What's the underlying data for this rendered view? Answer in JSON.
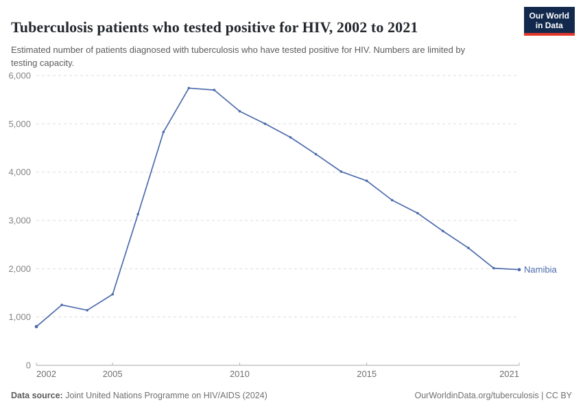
{
  "header": {
    "title": "Tuberculosis patients who tested positive for HIV, 2002 to 2021",
    "subtitle": "Estimated number of patients diagnosed with tuberculosis who have tested positive for HIV. Numbers are limited by testing capacity.",
    "logo": {
      "line1": "Our World",
      "line2": "in Data"
    }
  },
  "chart_data": {
    "type": "line",
    "title": "Tuberculosis patients who tested positive for HIV, 2002 to 2021",
    "x": [
      2002,
      2003,
      2004,
      2005,
      2006,
      2007,
      2008,
      2009,
      2010,
      2011,
      2012,
      2013,
      2014,
      2015,
      2016,
      2017,
      2018,
      2019,
      2020,
      2021
    ],
    "series": [
      {
        "name": "Namibia",
        "values": [
          800,
          1250,
          1140,
          1470,
          3130,
          4830,
          5740,
          5700,
          5260,
          5000,
          4720,
          4370,
          4010,
          3820,
          3420,
          3150,
          2780,
          2430,
          2010,
          1980
        ],
        "color": "#4c6bac"
      }
    ],
    "xlim": [
      2002,
      2021
    ],
    "ylim": [
      0,
      6000
    ],
    "xticks": [
      2002,
      2005,
      2010,
      2015,
      2021
    ],
    "yticks": [
      0,
      1000,
      2000,
      3000,
      4000,
      5000,
      6000
    ],
    "grid": "horizontal-dashed",
    "legend_position": "end-of-line-label",
    "end_label": "Namibia"
  },
  "footer": {
    "source_label": "Data source:",
    "source_text": " Joint United Nations Programme on HIV/AIDS (2024)",
    "credit": "OurWorldinData.org/tuberculosis | CC BY"
  },
  "colors": {
    "line": "#4c6bac",
    "grid": "#dcdcdc",
    "axis": "#a5a5a5",
    "tick": "#b3b3b3",
    "y_label": "#848484",
    "x_label": "#707070",
    "logo_bg": "#12294d",
    "logo_stripe": "#e0362c"
  }
}
